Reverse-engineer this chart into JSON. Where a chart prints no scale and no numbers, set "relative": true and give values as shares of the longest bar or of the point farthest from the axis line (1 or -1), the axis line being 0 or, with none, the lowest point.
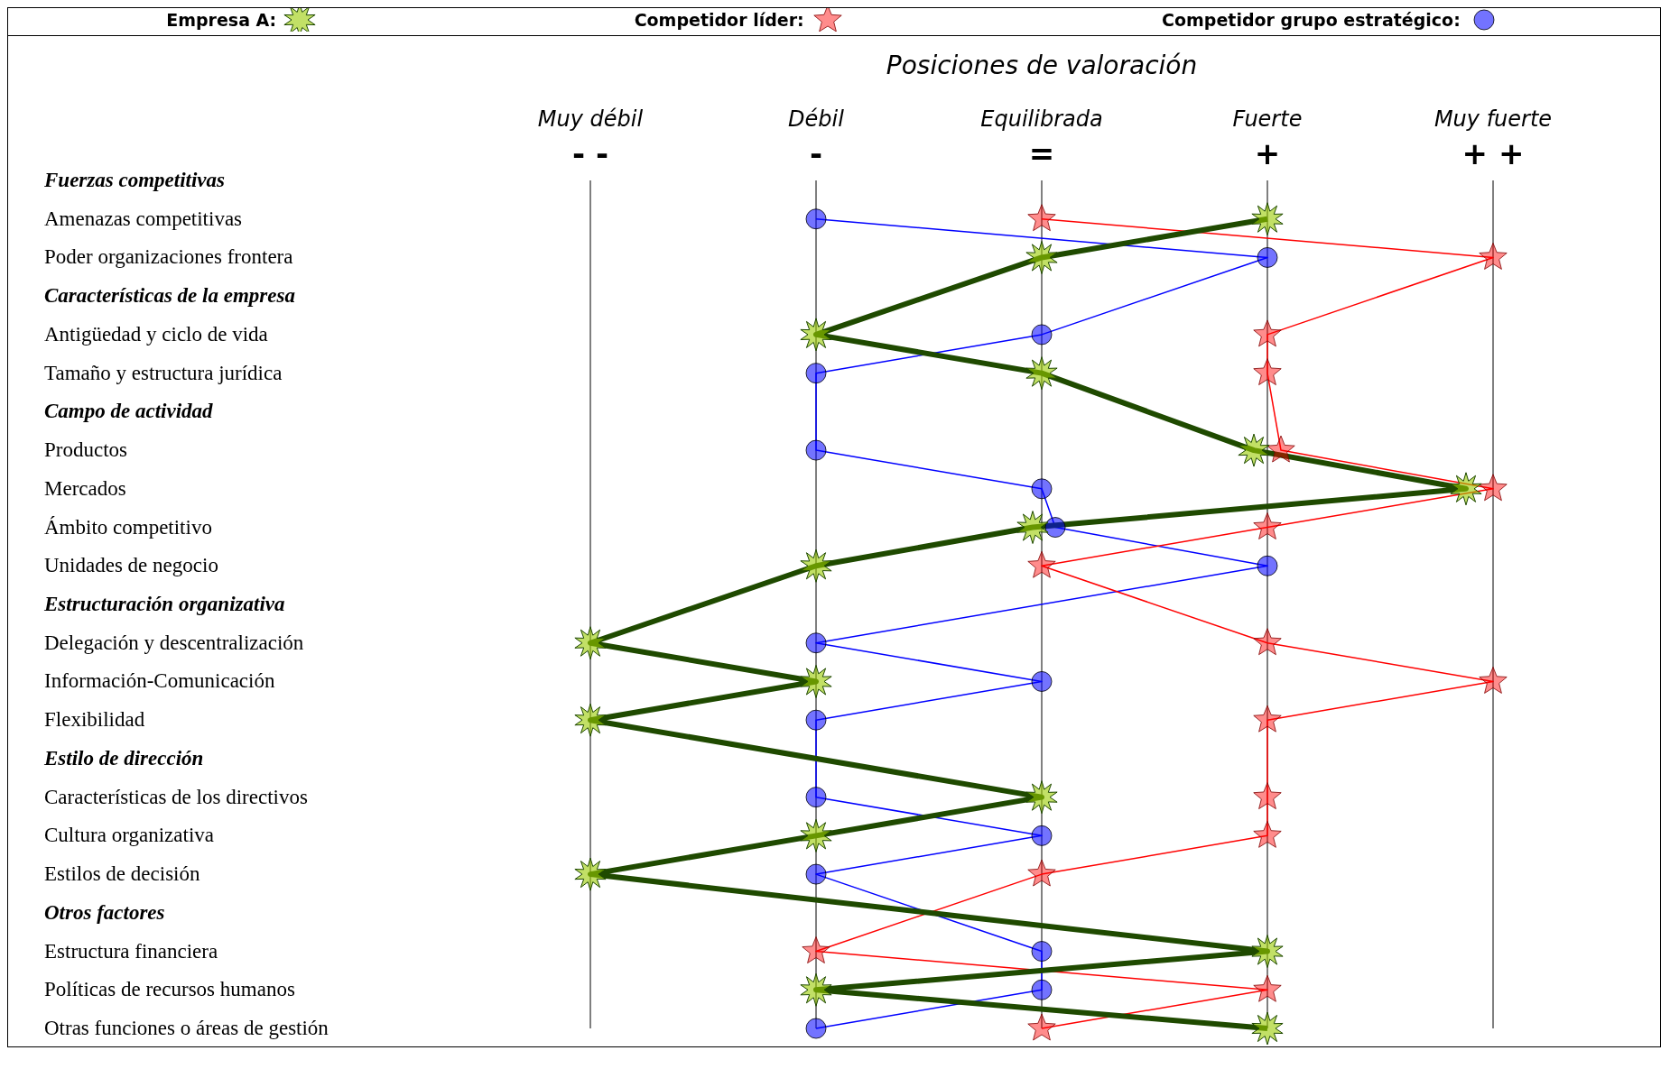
{
  "chart_data": {
    "type": "line",
    "orientation": "horizontal",
    "relative": true,
    "xlabel": "Posiciones de valoración",
    "categories": [
      "Fuerzas competitivas",
      "Amenazas competitivas",
      "Poder organizaciones frontera",
      "Características de la empresa",
      "Antigüedad y ciclo de vida",
      "Tamaño y estructura jurídica",
      "Campo de actividad",
      "Productos",
      "Mercados",
      "Ámbito competitivo",
      "Unidades de negocio",
      "Estructuración organizativa",
      "Delegación y descentralización",
      "Información-Comunicación",
      "Flexibilidad",
      "Estilo de dirección",
      "Características de los directivos",
      "Cultura organizativa",
      "Estilos de decisión",
      "Otros factores",
      "Estructura financiera",
      "Políticas de recursos humanos",
      "Otras funciones o áreas de gestión"
    ],
    "series": [
      {
        "name": "Empresa A:",
        "color": "#1f4a00",
        "marker": "star",
        "values": [
          null,
          0.75,
          0.5,
          null,
          0.25,
          0.5,
          null,
          0.735,
          0.97,
          0.49,
          0.25,
          null,
          0,
          0.25,
          0,
          null,
          0.5,
          0.25,
          0,
          null,
          0.75,
          0.25,
          0.75
        ]
      },
      {
        "name": "Competidor  líder:",
        "color": "#ff0000",
        "marker": "star",
        "values": [
          null,
          0.5,
          1,
          null,
          0.75,
          0.75,
          null,
          0.765,
          1,
          0.75,
          0.5,
          null,
          0.75,
          1,
          0.75,
          null,
          0.75,
          0.75,
          0.5,
          null,
          0.25,
          0.75,
          0.5
        ]
      },
      {
        "name": "Competidor grupo estratégico:",
        "color": "#0000ff",
        "marker": "circle",
        "values": [
          null,
          0.25,
          0.75,
          null,
          0.5,
          0.25,
          null,
          0.25,
          0.5,
          0.515,
          0.75,
          null,
          0.25,
          0.5,
          0.25,
          null,
          0.25,
          0.5,
          0.25,
          null,
          0.5,
          0.5,
          0.25
        ]
      }
    ],
    "annotations": [
      "Muy débil\n- -",
      "Débil\n-",
      "Equilibrada\n=",
      "Fuerte\n+",
      "Muy fuerte\n+ +"
    ],
    "grid": "x",
    "legend": "top"
  }
}
